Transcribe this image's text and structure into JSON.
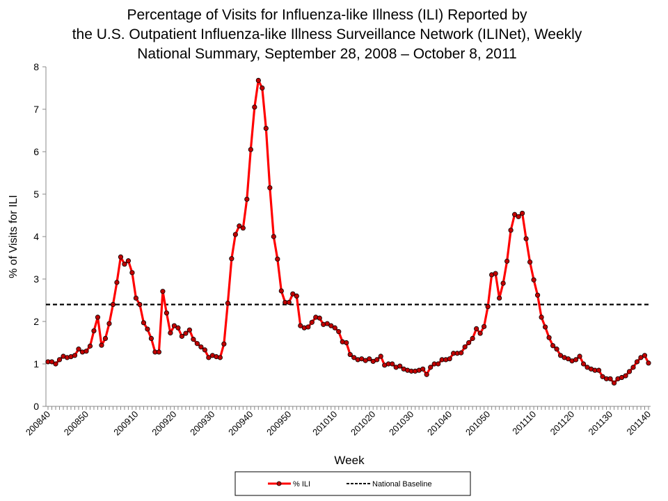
{
  "chart_data": {
    "type": "line",
    "title": [
      "Percentage of Visits for Influenza-like Illness (ILI) Reported by",
      "the U.S. Outpatient Influenza-like Illness Surveillance Network (ILINet), Weekly",
      "National Summary, September 28, 2008 – October 8, 2011"
    ],
    "x_label": "Week",
    "y_label": "% of Visits for ILI",
    "categories": [
      "200840",
      null,
      null,
      null,
      null,
      null,
      null,
      null,
      null,
      null,
      "200850",
      null,
      null,
      null,
      null,
      null,
      null,
      null,
      null,
      null,
      null,
      null,
      null,
      "200910",
      null,
      null,
      null,
      null,
      null,
      null,
      null,
      null,
      null,
      "200920",
      null,
      null,
      null,
      null,
      null,
      null,
      null,
      null,
      null,
      "200930",
      null,
      null,
      null,
      null,
      null,
      null,
      null,
      null,
      null,
      "200940",
      null,
      null,
      null,
      null,
      null,
      null,
      null,
      null,
      null,
      "200950",
      null,
      null,
      null,
      null,
      null,
      null,
      null,
      null,
      null,
      null,
      null,
      "201010",
      null,
      null,
      null,
      null,
      null,
      null,
      null,
      null,
      null,
      "201020",
      null,
      null,
      null,
      null,
      null,
      null,
      null,
      null,
      null,
      "201030",
      null,
      null,
      null,
      null,
      null,
      null,
      null,
      null,
      null,
      "201040",
      null,
      null,
      null,
      null,
      null,
      null,
      null,
      null,
      null,
      "201050",
      null,
      null,
      null,
      null,
      null,
      null,
      null,
      null,
      null,
      null,
      null,
      "201110",
      null,
      null,
      null,
      null,
      null,
      null,
      null,
      null,
      null,
      "201120",
      null,
      null,
      null,
      null,
      null,
      null,
      null,
      null,
      null,
      "201130",
      null,
      null,
      null,
      null,
      null,
      null,
      null,
      null,
      null,
      "201140"
    ],
    "series": [
      {
        "name": "% ILI",
        "color": "#ff0000",
        "marker_color": "#c00000",
        "values": [
          1.05,
          1.05,
          1.0,
          1.1,
          1.18,
          1.15,
          1.17,
          1.2,
          1.35,
          1.28,
          1.3,
          1.42,
          1.78,
          2.1,
          1.44,
          1.6,
          1.95,
          2.4,
          2.92,
          3.52,
          3.35,
          3.43,
          3.15,
          2.55,
          2.4,
          1.97,
          1.82,
          1.6,
          1.28,
          1.28,
          2.71,
          2.2,
          1.73,
          1.9,
          1.85,
          1.65,
          1.72,
          1.8,
          1.58,
          1.48,
          1.4,
          1.33,
          1.15,
          1.2,
          1.17,
          1.15,
          1.47,
          2.43,
          3.48,
          4.05,
          4.25,
          4.2,
          4.88,
          6.05,
          7.05,
          7.68,
          7.5,
          6.55,
          5.15,
          4.0,
          3.47,
          2.72,
          2.45,
          2.45,
          2.65,
          2.6,
          1.9,
          1.85,
          1.87,
          1.98,
          2.1,
          2.08,
          1.93,
          1.95,
          1.9,
          1.85,
          1.76,
          1.52,
          1.5,
          1.22,
          1.15,
          1.1,
          1.12,
          1.08,
          1.12,
          1.06,
          1.1,
          1.18,
          0.97,
          1.0,
          1.0,
          0.92,
          0.95,
          0.88,
          0.85,
          0.83,
          0.83,
          0.85,
          0.88,
          0.75,
          0.92,
          1.0,
          1.0,
          1.1,
          1.1,
          1.12,
          1.25,
          1.25,
          1.26,
          1.4,
          1.5,
          1.6,
          1.83,
          1.72,
          1.88,
          2.35,
          3.1,
          3.13,
          2.55,
          2.9,
          3.42,
          4.15,
          4.52,
          4.47,
          4.55,
          3.95,
          3.4,
          2.98,
          2.62,
          2.1,
          1.87,
          1.62,
          1.43,
          1.35,
          1.2,
          1.15,
          1.12,
          1.07,
          1.1,
          1.18,
          1.0,
          0.92,
          0.88,
          0.85,
          0.85,
          0.7,
          0.65,
          0.65,
          0.55,
          0.65,
          0.68,
          0.72,
          0.82,
          0.92,
          1.05,
          1.15,
          1.2,
          1.02
        ]
      }
    ],
    "baseline": {
      "name": "National Baseline",
      "value": 2.4,
      "color": "#000000"
    },
    "ylim": [
      0,
      8
    ],
    "yticks": [
      0,
      1,
      2,
      3,
      4,
      5,
      6,
      7,
      8
    ],
    "grid": false,
    "legend": "bottom"
  }
}
